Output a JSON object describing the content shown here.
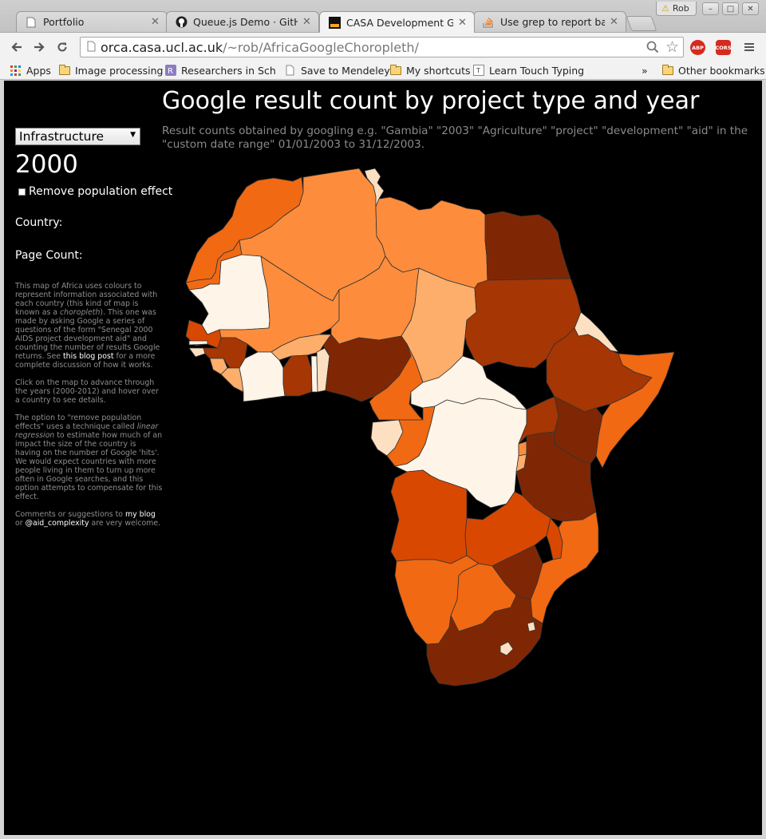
{
  "browser": {
    "tabs": [
      {
        "title": "Portfolio",
        "icon": "document-icon",
        "active": false
      },
      {
        "title": "Queue.js Demo · GitHub",
        "icon": "github-icon",
        "active": false
      },
      {
        "title": "CASA Development Goo",
        "icon": "ucl-icon",
        "active": true
      },
      {
        "title": "Use grep to report back",
        "icon": "stackoverflow-icon",
        "active": false
      }
    ],
    "profile_name": "Rob",
    "url_host": "orca.casa.ucl.ac.uk",
    "url_path": "/~rob/AfricaGoogleChoropleth/",
    "extensions": [
      "ABP",
      "CORS"
    ],
    "bookmarks": [
      {
        "label": "Apps",
        "icon": "apps-grid-icon"
      },
      {
        "label": "Image processing",
        "icon": "folder-icon"
      },
      {
        "label": "Researchers in Schoo",
        "icon": "researchgate-icon"
      },
      {
        "label": "Save to Mendeley",
        "icon": "page-icon"
      },
      {
        "label": "My shortcuts",
        "icon": "folder-icon"
      },
      {
        "label": "Learn Touch Typing F",
        "icon": "typing-icon"
      }
    ],
    "bookmarks_overflow": "»",
    "other_bookmarks": "Other bookmarks"
  },
  "page": {
    "title": "Google result count by project type and year",
    "subtitle": "Result counts obtained by googling e.g. \"Gambia\" \"2003\" \"Agriculture\" \"project\" \"development\" \"aid\" in the \"custom date range\" 01/01/2003 to 31/12/2003.",
    "project_type": "Infrastructure",
    "year": "2000",
    "remove_population_label": "Remove population effect",
    "remove_population_checked": false,
    "country_label": "Country:",
    "country_value": "",
    "page_count_label": "Page Count:",
    "page_count_value": "",
    "info": {
      "p1_a": "This map of Africa uses colours to represent information associated with each country (this kind of map is known as a ",
      "p1_em": "choropleth",
      "p1_b": "). This one was made by asking Google a series of questions of the form \"Senegal 2000 AIDS project development aid\" and counting the number of results Google returns. See ",
      "p1_link": "this blog post",
      "p1_c": " for a more complete discussion of how it works.",
      "p2": "Click on the map to advance through the years (2000-2012) and hover over a country to see details.",
      "p3_a": "The option to \"remove population effects\" uses a technique called ",
      "p3_em": "linear regression",
      "p3_b": " to estimate how much of an impact the size of the country is having on the number of Google 'hits'. We would expect countries with more people living in them to turn up more often in Google searches, and this option attempts to compensate for this effect.",
      "p4_a": "Comments or suggestions to ",
      "p4_link1": "my blog",
      "p4_b": " or ",
      "p4_link2": "@aid_complexity",
      "p4_c": " are very welcome."
    }
  },
  "map_colors": {
    "c1": "#fff4e8",
    "c2": "#fde0c2",
    "c3": "#fdae6b",
    "c4": "#fd8d3c",
    "c5": "#f16913",
    "c6": "#d94801",
    "c7": "#a63603",
    "c8": "#7f2704"
  }
}
